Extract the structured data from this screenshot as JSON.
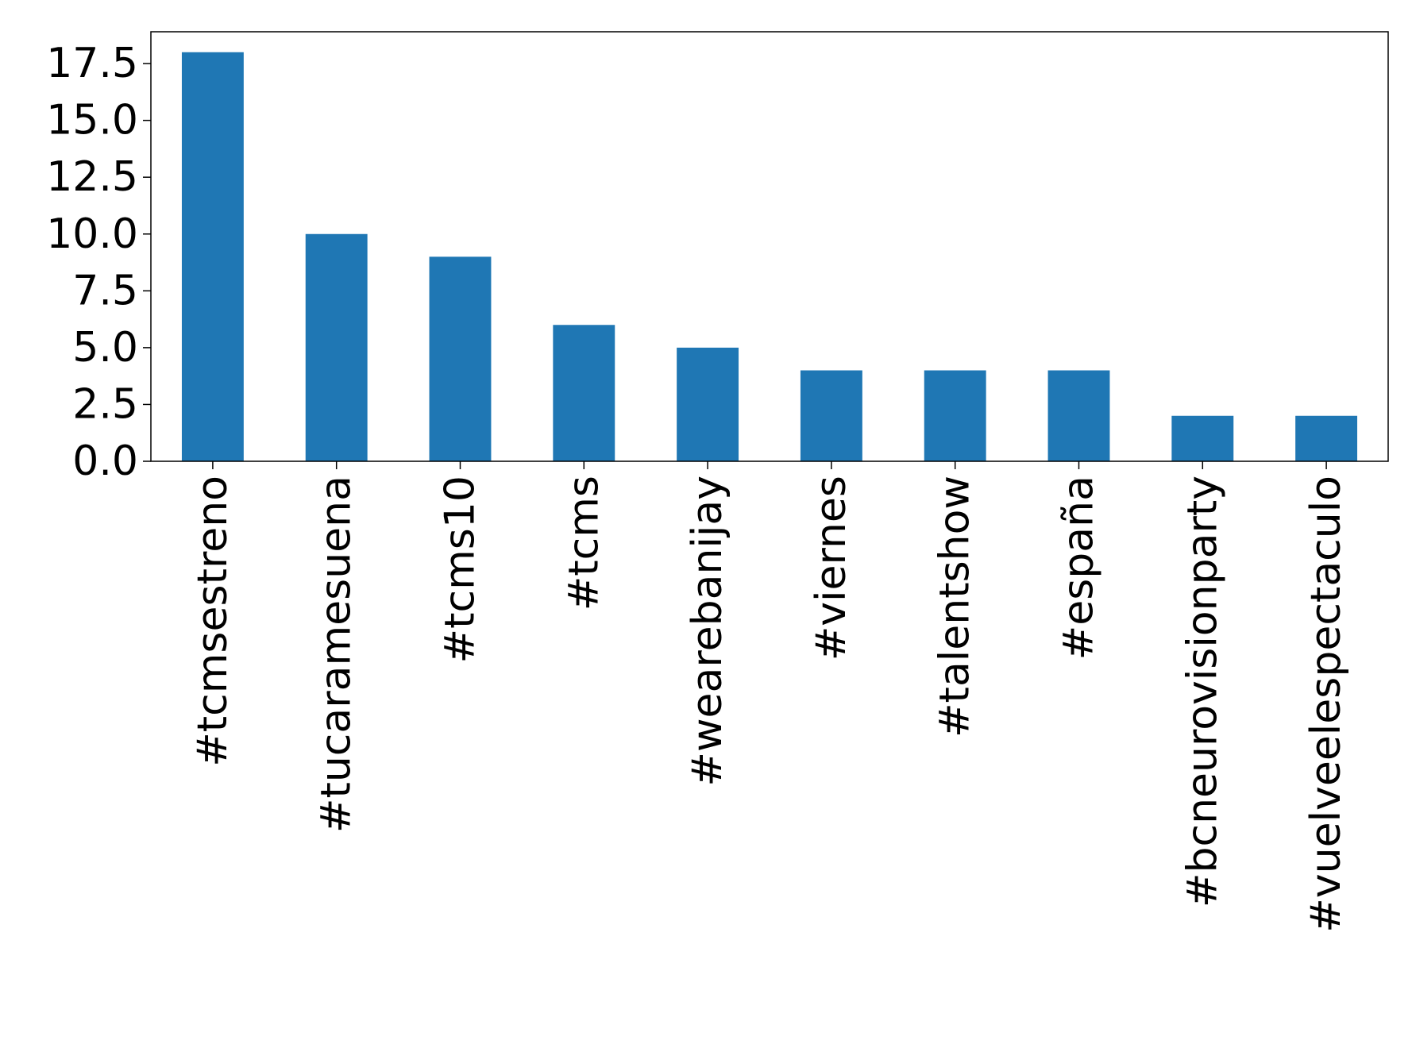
{
  "chart_data": {
    "type": "bar",
    "categories": [
      "#tcmsestreno",
      "#tucaramesuena",
      "#tcms10",
      "#tcms",
      "#wearebanijay",
      "#viernes",
      "#talentshow",
      "#españa",
      "#bcneurovisionparty",
      "#vuelveelespectaculo"
    ],
    "values": [
      18,
      10,
      9,
      6,
      5,
      4,
      4,
      4,
      2,
      2
    ],
    "color": "#1f77b4",
    "ylim": [
      0,
      18.9
    ],
    "yticks": [
      {
        "value": 0,
        "label": "0.0"
      },
      2.5,
      {
        "value": 5,
        "label": "5.0"
      },
      7.5,
      {
        "value": 10,
        "label": "10.0"
      },
      12.5,
      {
        "value": 15,
        "label": "15.0"
      },
      17.5
    ],
    "grid": false
  }
}
